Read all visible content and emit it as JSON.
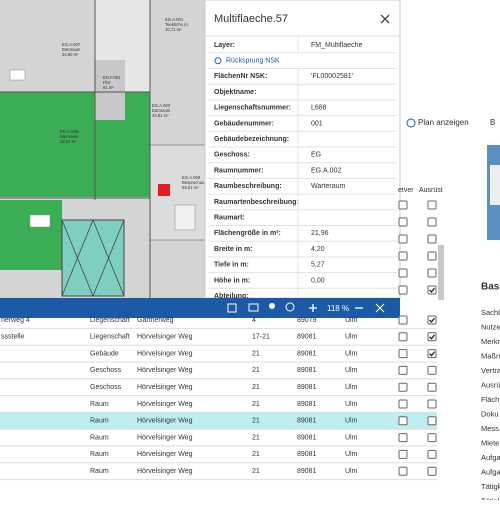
{
  "popup": {
    "title": "Multiflaeche.57",
    "rows": [
      {
        "label": "Layer:",
        "value": "FM_Multiflaeche"
      },
      {
        "link": "Rücksprung NSK"
      },
      {
        "label": "FlächenNr NSK:",
        "value": "'FL00002581'"
      },
      {
        "label": "Objektname:"
      },
      {
        "label": "Liegenschaftsnummer:",
        "value": "L688"
      },
      {
        "label": "Gebäudenummer:",
        "value": "001"
      },
      {
        "label": "Gebäudebezeichnung:"
      },
      {
        "label": "Geschoss:",
        "value": "EG"
      },
      {
        "label": "Raumnummer:",
        "value": "EG.A.002"
      },
      {
        "label": "Raumbeschreibung:",
        "value": "Warteraum"
      },
      {
        "label": "Raumartenbeschreibung:"
      },
      {
        "label": "Raumart:"
      },
      {
        "label": "Flächengröße in m²:",
        "value": "21,96"
      },
      {
        "label": "Breite in m:",
        "value": "4,20"
      },
      {
        "label": "Tiefe in m:",
        "value": "5,27"
      },
      {
        "label": "Höhe in m:",
        "value": "0,00"
      },
      {
        "label": "Abteilung:"
      }
    ]
  },
  "plan": {
    "rooms": [
      {
        "lines": [
          "EG.A.007",
          "Büroraum",
          "34,80 m²"
        ]
      },
      {
        "lines": [
          "EG.A.001",
          "Teeküche m.",
          "10,71 m²"
        ]
      },
      {
        "lines": [
          "EG.F.001",
          "Flur",
          "81 m²"
        ]
      },
      {
        "lines": [
          "EG.A.003",
          "Büroraum",
          "34,91 m²"
        ]
      },
      {
        "lines": [
          "EG.A.008",
          "Büroraum",
          "18,51 m²"
        ]
      },
      {
        "lines": [
          "EG.A.006",
          "Besprechungsraum",
          "59,01 m²"
        ]
      }
    ]
  },
  "toolbar": {
    "zoom": "118 %"
  },
  "table": {
    "header": [
      "etver",
      "Ausrüst"
    ],
    "upper_checks": [
      [
        false,
        false
      ],
      [
        false,
        false
      ],
      [
        false,
        false
      ],
      [
        false,
        false
      ],
      [
        false,
        false
      ],
      [
        false,
        true
      ]
    ],
    "rows": [
      {
        "cells": [
          "nerweg 4",
          "Liegenschaft",
          "Gärtnerweg",
          "4",
          "89079",
          "Ulm"
        ],
        "checks": [
          false,
          true
        ]
      },
      {
        "cells": [
          "ssstelle",
          "Liegenschaft",
          "Hörvelsinger Weg",
          "17-21",
          "89081",
          "Ulm"
        ],
        "checks": [
          false,
          true
        ]
      },
      {
        "cells": [
          null,
          "Gebäude",
          "Hörvelsinger Weg",
          "21",
          "89081",
          "Ulm"
        ],
        "checks": [
          false,
          true
        ]
      },
      {
        "cells": [
          null,
          "Geschoss",
          "Hörvelsinger Weg",
          "21",
          "89081",
          "Ulm"
        ],
        "checks": [
          false,
          false
        ]
      },
      {
        "cells": [
          null,
          "Geschoss",
          "Hörvelsinger Weg",
          "21",
          "89081",
          "Ulm"
        ],
        "checks": [
          false,
          false
        ]
      },
      {
        "cells": [
          null,
          "Raum",
          "Hörvelsinger Weg",
          "21",
          "89081",
          "Ulm"
        ],
        "checks": [
          false,
          false
        ]
      },
      {
        "cells": [
          null,
          "Raum",
          "Hörvelsinger Weg",
          "21",
          "89081",
          "Ulm"
        ],
        "checks": [
          false,
          false
        ],
        "selected": true
      },
      {
        "cells": [
          null,
          "Raum",
          "Hörvelsinger Weg",
          "21",
          "89081",
          "Ulm"
        ],
        "checks": [
          false,
          false
        ]
      },
      {
        "cells": [
          null,
          "Raum",
          "Hörvelsinger Weg",
          "21",
          "89081",
          "Ulm"
        ],
        "checks": [
          false,
          false
        ]
      },
      {
        "cells": [
          null,
          "Raum",
          "Hörvelsinger Weg",
          "21",
          "89081",
          "Ulm"
        ],
        "checks": [
          false,
          false
        ]
      }
    ]
  },
  "side": {
    "button": "Plan anzeigen",
    "button2": "B",
    "heading": "Basi",
    "items": [
      "Sachb",
      "Nutze",
      "Merkm",
      "Maßn",
      "Vertra",
      "Ausrü",
      "Fläch",
      "Doku",
      "Mess",
      "Miete",
      "Aufga",
      "Aufga",
      "Tätigk",
      "Tätigk"
    ]
  }
}
